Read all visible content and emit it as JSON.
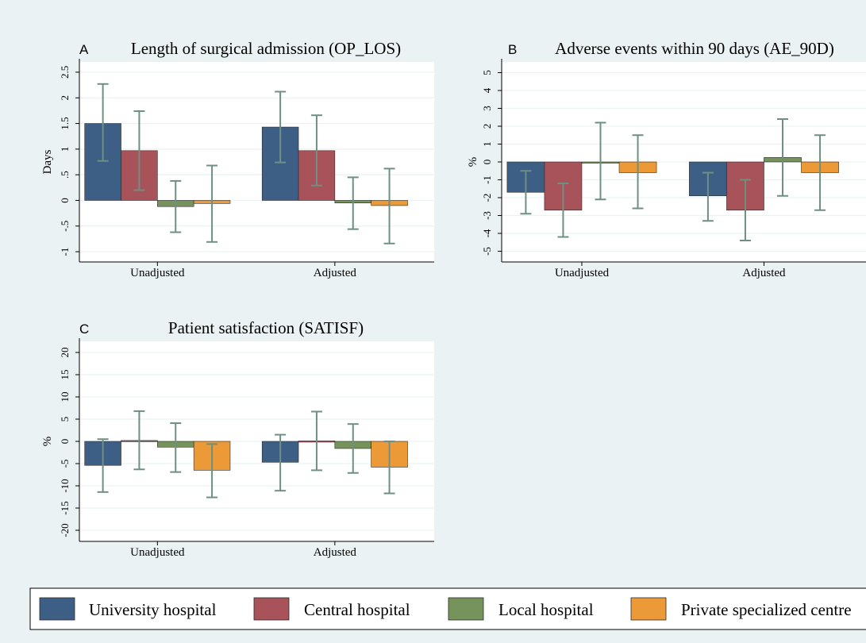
{
  "colors": {
    "background": "#eaf2f3",
    "plot_background": "#ffffff",
    "gridline": "#eaf2f3",
    "error_bar": "#6e8f82",
    "university": "#3e5f85",
    "central": "#a8525a",
    "local": "#75935a",
    "private": "#eb9a37"
  },
  "legend": {
    "items": [
      {
        "label": "University hospital",
        "color": "#3e5f85"
      },
      {
        "label": "Central hospital",
        "color": "#a8525a"
      },
      {
        "label": "Local hospital",
        "color": "#75935a"
      },
      {
        "label": "Private specialized centre",
        "color": "#eb9a37"
      }
    ]
  },
  "chart_data": [
    {
      "type": "bar",
      "panel": "A",
      "title": "Length of surgical admission (OP_LOS)",
      "ylabel": "Days",
      "ylim": [
        -1.2,
        2.7
      ],
      "yticks": [
        -1,
        -0.5,
        0,
        0.5,
        1,
        1.5,
        2,
        2.5
      ],
      "ytick_labels": [
        "-1",
        "-.5",
        "0",
        ".5",
        "1",
        "1.5",
        "2",
        "2.5"
      ],
      "categories": [
        "Unadjusted",
        "Adjusted"
      ],
      "grid": true,
      "series": [
        {
          "name": "University hospital",
          "values": [
            1.5,
            1.43
          ],
          "ci_low": [
            0.77,
            0.74
          ],
          "ci_high": [
            2.27,
            2.12
          ]
        },
        {
          "name": "Central hospital",
          "values": [
            0.97,
            0.97
          ],
          "ci_low": [
            0.2,
            0.29
          ],
          "ci_high": [
            1.74,
            1.66
          ]
        },
        {
          "name": "Local hospital",
          "values": [
            -0.12,
            -0.05
          ],
          "ci_low": [
            -0.62,
            -0.56
          ],
          "ci_high": [
            0.38,
            0.45
          ]
        },
        {
          "name": "Private specialized centre",
          "values": [
            -0.06,
            -0.1
          ],
          "ci_low": [
            -0.81,
            -0.84
          ],
          "ci_high": [
            0.68,
            0.62
          ]
        }
      ]
    },
    {
      "type": "bar",
      "panel": "B",
      "title": "Adverse events within 90 days (AE_90D)",
      "ylabel": "%",
      "ylim": [
        -5.6,
        5.6
      ],
      "yticks": [
        -5,
        -4,
        -3,
        -2,
        -1,
        0,
        1,
        2,
        3,
        4,
        5
      ],
      "ytick_labels": [
        "-5",
        "-4",
        "-3",
        "-2",
        "-1",
        "0",
        "1",
        "2",
        "3",
        "4",
        "5"
      ],
      "categories": [
        "Unadjusted",
        "Adjusted"
      ],
      "grid": true,
      "series": [
        {
          "name": "University hospital",
          "values": [
            -1.7,
            -1.9
          ],
          "ci_low": [
            -2.9,
            -3.3
          ],
          "ci_high": [
            -0.5,
            -0.6
          ]
        },
        {
          "name": "Central hospital",
          "values": [
            -2.7,
            -2.7
          ],
          "ci_low": [
            -4.2,
            -4.4
          ],
          "ci_high": [
            -1.2,
            -1.0
          ]
        },
        {
          "name": "Local hospital",
          "values": [
            0.0,
            0.25
          ],
          "ci_low": [
            -2.1,
            -1.9
          ],
          "ci_high": [
            2.2,
            2.4
          ]
        },
        {
          "name": "Private specialized centre",
          "values": [
            -0.6,
            -0.6
          ],
          "ci_low": [
            -2.6,
            -2.7
          ],
          "ci_high": [
            1.5,
            1.5
          ]
        }
      ]
    },
    {
      "type": "bar",
      "panel": "C",
      "title": "Patient satisfaction (SATISF)",
      "ylabel": "%",
      "ylim": [
        -22.5,
        22.5
      ],
      "yticks": [
        -20,
        -15,
        -10,
        -5,
        0,
        5,
        10,
        15,
        20
      ],
      "ytick_labels": [
        "-20",
        "-15",
        "-10",
        "-5",
        "0",
        "5",
        "10",
        "15",
        "20"
      ],
      "categories": [
        "Unadjusted",
        "Adjusted"
      ],
      "grid": true,
      "series": [
        {
          "name": "University hospital",
          "values": [
            -5.4,
            -4.7
          ],
          "ci_low": [
            -11.4,
            -11.1
          ],
          "ci_high": [
            0.5,
            1.5
          ]
        },
        {
          "name": "Central hospital",
          "values": [
            0.2,
            0.1
          ],
          "ci_low": [
            -6.3,
            -6.5
          ],
          "ci_high": [
            6.8,
            6.7
          ]
        },
        {
          "name": "Local hospital",
          "values": [
            -1.3,
            -1.6
          ],
          "ci_low": [
            -6.9,
            -7.1
          ],
          "ci_high": [
            4.1,
            3.9
          ]
        },
        {
          "name": "Private specialized centre",
          "values": [
            -6.5,
            -5.8
          ],
          "ci_low": [
            -12.6,
            -11.7
          ],
          "ci_high": [
            -0.6,
            0.0
          ]
        }
      ]
    }
  ]
}
